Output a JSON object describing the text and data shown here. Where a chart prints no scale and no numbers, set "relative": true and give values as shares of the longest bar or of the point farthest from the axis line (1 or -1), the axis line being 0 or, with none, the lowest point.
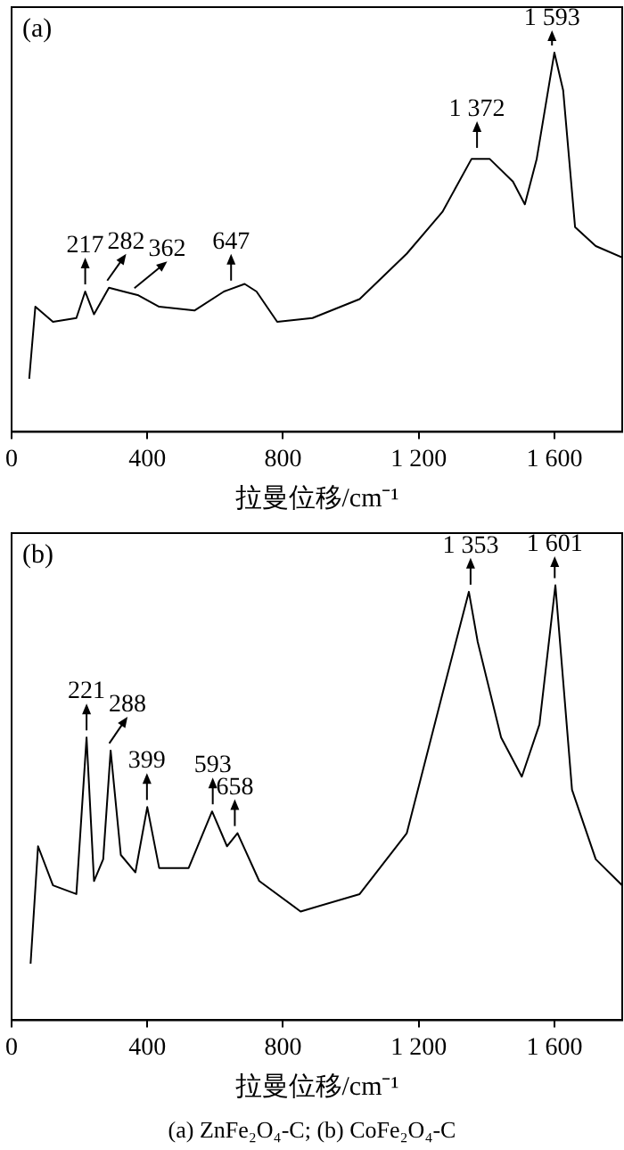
{
  "chart_data": [
    {
      "type": "line",
      "title": "(a)",
      "xlabel": "拉曼位移/cm⁻¹",
      "relative": true,
      "color": "#000000",
      "xlim": [
        0,
        1800
      ],
      "xticks": [
        0,
        400,
        800,
        1200,
        1600
      ],
      "x": [
        52,
        70,
        122,
        191,
        217,
        243,
        287,
        330,
        374,
        435,
        539,
        626,
        687,
        722,
        783,
        887,
        1026,
        1165,
        1270,
        1356,
        1409,
        1478,
        1513,
        1548,
        1600,
        1626,
        1661,
        1722,
        1800
      ],
      "values": [
        0.14,
        0.33,
        0.29,
        0.3,
        0.37,
        0.31,
        0.38,
        0.37,
        0.36,
        0.33,
        0.32,
        0.37,
        0.39,
        0.37,
        0.29,
        0.3,
        0.35,
        0.47,
        0.58,
        0.72,
        0.72,
        0.66,
        0.6,
        0.72,
        1,
        0.9,
        0.54,
        0.49,
        0.46
      ],
      "annotations": [
        {
          "text": "217",
          "x": 217,
          "y": 0.37
        },
        {
          "text": "282",
          "x": 282,
          "y": 0.38
        },
        {
          "text": "362",
          "x": 362,
          "y": 0.36
        },
        {
          "text": "647",
          "x": 647,
          "y": 0.38
        },
        {
          "text": "1 372",
          "x": 1372,
          "y": 0.73
        },
        {
          "text": "1 593",
          "x": 1593,
          "y": 1
        }
      ]
    },
    {
      "type": "line",
      "title": "(b)",
      "xlabel": "拉曼位移/cm⁻¹",
      "relative": true,
      "color": "#000000",
      "xlim": [
        0,
        1800
      ],
      "xticks": [
        0,
        400,
        800,
        1200,
        1600
      ],
      "x": [
        56,
        78,
        122,
        191,
        221,
        243,
        270,
        292,
        322,
        365,
        400,
        435,
        522,
        591,
        635,
        666,
        730,
        852,
        1026,
        1165,
        1270,
        1348,
        1374,
        1443,
        1504,
        1556,
        1603,
        1652,
        1722,
        1800
      ],
      "values": [
        0.13,
        0.4,
        0.31,
        0.29,
        0.65,
        0.32,
        0.37,
        0.62,
        0.38,
        0.34,
        0.49,
        0.35,
        0.35,
        0.48,
        0.4,
        0.43,
        0.32,
        0.25,
        0.29,
        0.43,
        0.75,
        0.985,
        0.87,
        0.65,
        0.56,
        0.68,
        1,
        0.53,
        0.37,
        0.31
      ],
      "annotations": [
        {
          "text": "221",
          "x": 221,
          "y": 0.65
        },
        {
          "text": "288",
          "x": 288,
          "y": 0.62
        },
        {
          "text": "399",
          "x": 399,
          "y": 0.49
        },
        {
          "text": "593",
          "x": 593,
          "y": 0.48
        },
        {
          "text": "658",
          "x": 658,
          "y": 0.43
        },
        {
          "text": "1 353",
          "x": 1353,
          "y": 0.985
        },
        {
          "text": "1 601",
          "x": 1601,
          "y": 1
        },
        "(a) ZnFe₂O₄-C; (b) CoFe₂O₄-C"
      ]
    }
  ]
}
